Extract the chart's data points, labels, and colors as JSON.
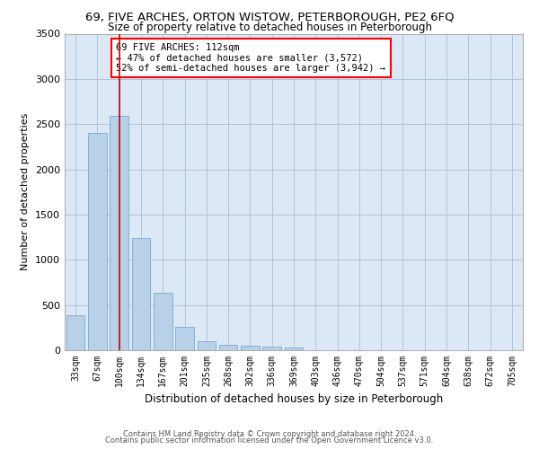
{
  "title1": "69, FIVE ARCHES, ORTON WISTOW, PETERBOROUGH, PE2 6FQ",
  "title2": "Size of property relative to detached houses in Peterborough",
  "xlabel": "Distribution of detached houses by size in Peterborough",
  "ylabel": "Number of detached properties",
  "annotation_line1": "69 FIVE ARCHES: 112sqm",
  "annotation_line2": "← 47% of detached houses are smaller (3,572)",
  "annotation_line3": "52% of semi-detached houses are larger (3,942) →",
  "categories": [
    "33sqm",
    "67sqm",
    "100sqm",
    "134sqm",
    "167sqm",
    "201sqm",
    "235sqm",
    "268sqm",
    "302sqm",
    "336sqm",
    "369sqm",
    "403sqm",
    "436sqm",
    "470sqm",
    "504sqm",
    "537sqm",
    "571sqm",
    "604sqm",
    "638sqm",
    "672sqm",
    "705sqm"
  ],
  "values": [
    390,
    2400,
    2590,
    1245,
    640,
    255,
    100,
    60,
    50,
    40,
    30,
    0,
    0,
    0,
    0,
    0,
    0,
    0,
    0,
    0,
    0
  ],
  "bar_color": "#b8d0e8",
  "bar_edge_color": "#7aabcf",
  "vline_x": 2,
  "vline_color": "#cc0000",
  "ylim": [
    0,
    3500
  ],
  "yticks": [
    0,
    500,
    1000,
    1500,
    2000,
    2500,
    3000,
    3500
  ],
  "background_color": "#ffffff",
  "plot_bg_color": "#dce8f5",
  "grid_color": "#b0c4d8",
  "title1_fontsize": 9.5,
  "title2_fontsize": 8.5,
  "footer1": "Contains HM Land Registry data © Crown copyright and database right 2024.",
  "footer2": "Contains public sector information licensed under the Open Government Licence v3.0."
}
